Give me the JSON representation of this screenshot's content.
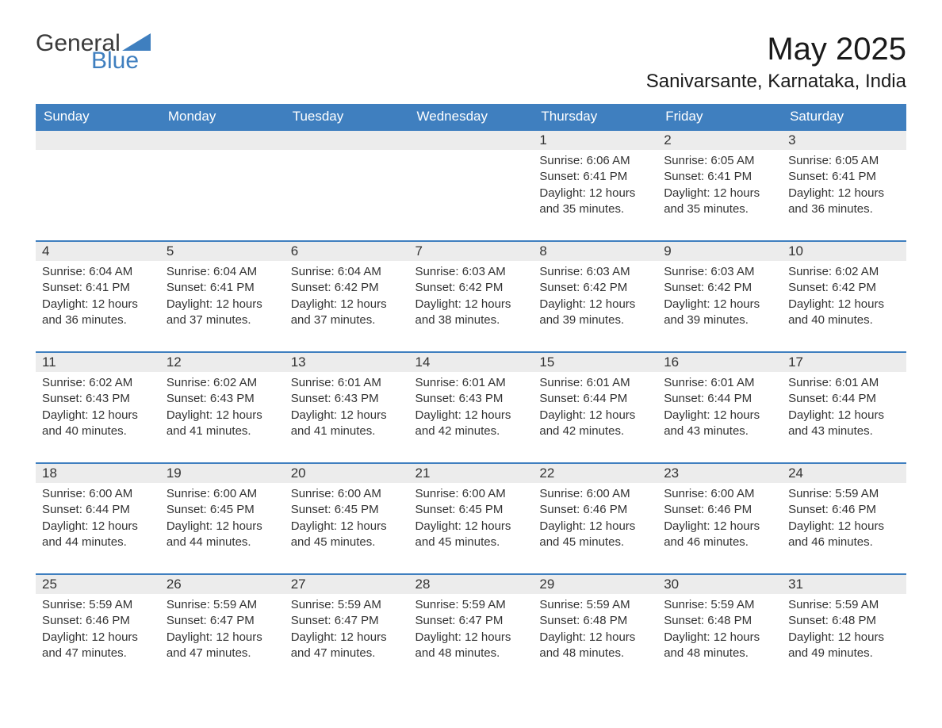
{
  "brand": {
    "general": "General",
    "blue": "Blue",
    "triangle_color": "#3f7fbf"
  },
  "title": "May 2025",
  "location": "Sanivarsante, Karnataka, India",
  "theme": {
    "header_bg": "#3f7fbf",
    "header_text": "#ffffff",
    "daybar_bg": "#ececec",
    "daybar_border": "#3f7fbf",
    "body_bg": "#ffffff",
    "text_color": "#333333",
    "title_fontsize": 40,
    "location_fontsize": 24,
    "weekday_fontsize": 17,
    "daynum_fontsize": 17,
    "cell_fontsize": 15
  },
  "weekdays": [
    "Sunday",
    "Monday",
    "Tuesday",
    "Wednesday",
    "Thursday",
    "Friday",
    "Saturday"
  ],
  "weeks": [
    [
      null,
      null,
      null,
      null,
      {
        "n": "1",
        "sr": "6:06 AM",
        "ss": "6:41 PM",
        "dl": "12 hours and 35 minutes."
      },
      {
        "n": "2",
        "sr": "6:05 AM",
        "ss": "6:41 PM",
        "dl": "12 hours and 35 minutes."
      },
      {
        "n": "3",
        "sr": "6:05 AM",
        "ss": "6:41 PM",
        "dl": "12 hours and 36 minutes."
      }
    ],
    [
      {
        "n": "4",
        "sr": "6:04 AM",
        "ss": "6:41 PM",
        "dl": "12 hours and 36 minutes."
      },
      {
        "n": "5",
        "sr": "6:04 AM",
        "ss": "6:41 PM",
        "dl": "12 hours and 37 minutes."
      },
      {
        "n": "6",
        "sr": "6:04 AM",
        "ss": "6:42 PM",
        "dl": "12 hours and 37 minutes."
      },
      {
        "n": "7",
        "sr": "6:03 AM",
        "ss": "6:42 PM",
        "dl": "12 hours and 38 minutes."
      },
      {
        "n": "8",
        "sr": "6:03 AM",
        "ss": "6:42 PM",
        "dl": "12 hours and 39 minutes."
      },
      {
        "n": "9",
        "sr": "6:03 AM",
        "ss": "6:42 PM",
        "dl": "12 hours and 39 minutes."
      },
      {
        "n": "10",
        "sr": "6:02 AM",
        "ss": "6:42 PM",
        "dl": "12 hours and 40 minutes."
      }
    ],
    [
      {
        "n": "11",
        "sr": "6:02 AM",
        "ss": "6:43 PM",
        "dl": "12 hours and 40 minutes."
      },
      {
        "n": "12",
        "sr": "6:02 AM",
        "ss": "6:43 PM",
        "dl": "12 hours and 41 minutes."
      },
      {
        "n": "13",
        "sr": "6:01 AM",
        "ss": "6:43 PM",
        "dl": "12 hours and 41 minutes."
      },
      {
        "n": "14",
        "sr": "6:01 AM",
        "ss": "6:43 PM",
        "dl": "12 hours and 42 minutes."
      },
      {
        "n": "15",
        "sr": "6:01 AM",
        "ss": "6:44 PM",
        "dl": "12 hours and 42 minutes."
      },
      {
        "n": "16",
        "sr": "6:01 AM",
        "ss": "6:44 PM",
        "dl": "12 hours and 43 minutes."
      },
      {
        "n": "17",
        "sr": "6:01 AM",
        "ss": "6:44 PM",
        "dl": "12 hours and 43 minutes."
      }
    ],
    [
      {
        "n": "18",
        "sr": "6:00 AM",
        "ss": "6:44 PM",
        "dl": "12 hours and 44 minutes."
      },
      {
        "n": "19",
        "sr": "6:00 AM",
        "ss": "6:45 PM",
        "dl": "12 hours and 44 minutes."
      },
      {
        "n": "20",
        "sr": "6:00 AM",
        "ss": "6:45 PM",
        "dl": "12 hours and 45 minutes."
      },
      {
        "n": "21",
        "sr": "6:00 AM",
        "ss": "6:45 PM",
        "dl": "12 hours and 45 minutes."
      },
      {
        "n": "22",
        "sr": "6:00 AM",
        "ss": "6:46 PM",
        "dl": "12 hours and 45 minutes."
      },
      {
        "n": "23",
        "sr": "6:00 AM",
        "ss": "6:46 PM",
        "dl": "12 hours and 46 minutes."
      },
      {
        "n": "24",
        "sr": "5:59 AM",
        "ss": "6:46 PM",
        "dl": "12 hours and 46 minutes."
      }
    ],
    [
      {
        "n": "25",
        "sr": "5:59 AM",
        "ss": "6:46 PM",
        "dl": "12 hours and 47 minutes."
      },
      {
        "n": "26",
        "sr": "5:59 AM",
        "ss": "6:47 PM",
        "dl": "12 hours and 47 minutes."
      },
      {
        "n": "27",
        "sr": "5:59 AM",
        "ss": "6:47 PM",
        "dl": "12 hours and 47 minutes."
      },
      {
        "n": "28",
        "sr": "5:59 AM",
        "ss": "6:47 PM",
        "dl": "12 hours and 48 minutes."
      },
      {
        "n": "29",
        "sr": "5:59 AM",
        "ss": "6:48 PM",
        "dl": "12 hours and 48 minutes."
      },
      {
        "n": "30",
        "sr": "5:59 AM",
        "ss": "6:48 PM",
        "dl": "12 hours and 48 minutes."
      },
      {
        "n": "31",
        "sr": "5:59 AM",
        "ss": "6:48 PM",
        "dl": "12 hours and 49 minutes."
      }
    ]
  ],
  "labels": {
    "sunrise": "Sunrise:",
    "sunset": "Sunset:",
    "daylight": "Daylight:"
  }
}
